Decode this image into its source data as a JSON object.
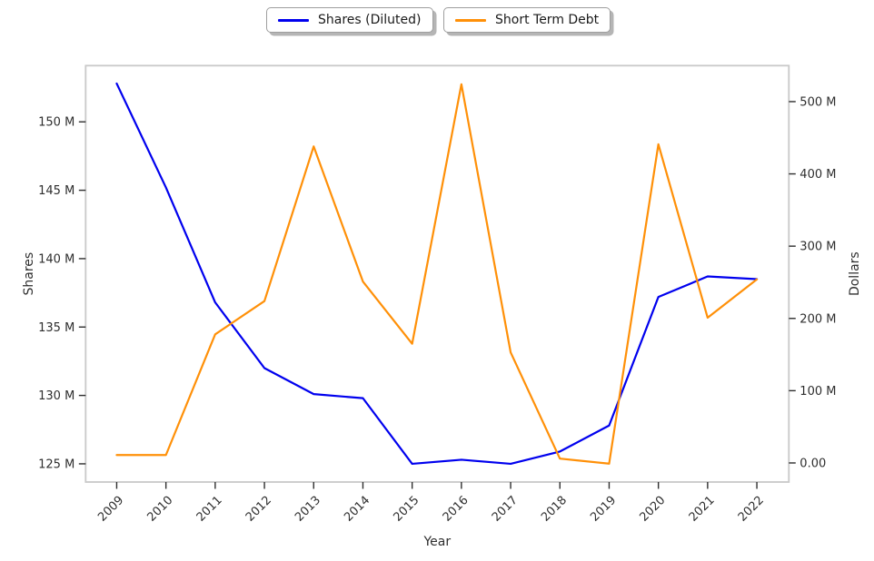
{
  "chart_data": {
    "type": "line",
    "title": "",
    "xlabel": "Year",
    "grid": false,
    "background": "#ffffff",
    "legend_position": "top-center",
    "x_tick_rotation": 45,
    "x": [
      2009,
      2010,
      2011,
      2012,
      2013,
      2014,
      2015,
      2016,
      2017,
      2018,
      2019,
      2020,
      2021,
      2022
    ],
    "x_tick_labels": [
      "2009",
      "2010",
      "2011",
      "2012",
      "2013",
      "2014",
      "2015",
      "2016",
      "2017",
      "2018",
      "2019",
      "2020",
      "2021",
      "2022"
    ],
    "xlim": [
      2008.37,
      2022.65
    ],
    "units_note": "all series values in millions",
    "series": [
      {
        "name": "Shares (Diluted)",
        "axis": "left",
        "color": "#0000ee",
        "values": [
          152.8,
          145.2,
          136.8,
          132.0,
          130.1,
          129.8,
          125.0,
          125.3,
          125.0,
          125.9,
          127.8,
          137.2,
          138.7,
          138.5
        ]
      },
      {
        "name": "Short Term Debt",
        "axis": "right",
        "color": "#ff9008",
        "values": [
          11,
          11,
          178,
          224,
          438,
          251,
          165,
          524,
          153,
          6,
          -1,
          441,
          201,
          254
        ]
      }
    ],
    "left_axis": {
      "label": "Shares",
      "tick_values": [
        125,
        130,
        135,
        140,
        145,
        150
      ],
      "tick_labels": [
        "125 M",
        "130 M",
        "135 M",
        "140 M",
        "145 M",
        "150 M"
      ],
      "ylim": [
        123.67,
        154.11
      ]
    },
    "right_axis": {
      "label": "Dollars",
      "tick_values": [
        0,
        100,
        200,
        300,
        400,
        500
      ],
      "tick_labels": [
        "0.00",
        "100 M",
        "200 M",
        "300 M",
        "400 M",
        "500 M"
      ],
      "ylim": [
        -26.4,
        549.8
      ]
    }
  }
}
